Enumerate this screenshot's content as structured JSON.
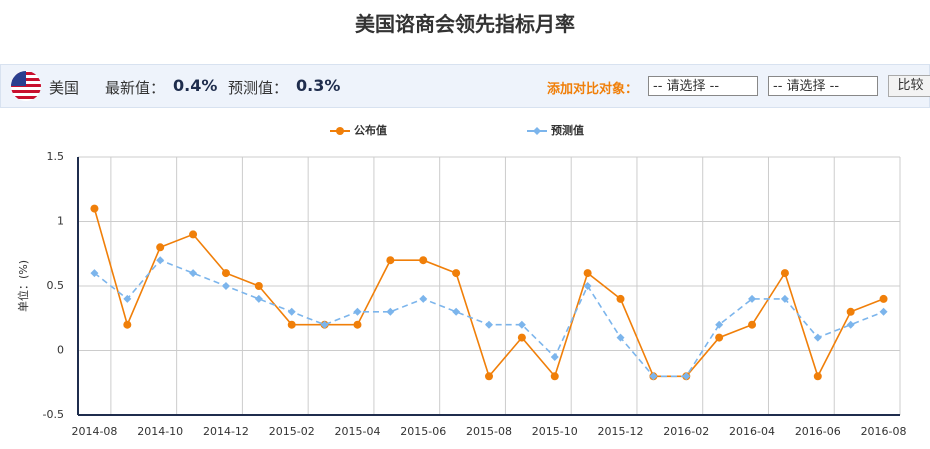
{
  "header": {
    "title": "美国谘商会领先指标月率",
    "country": "美国",
    "latest_label": "最新值：",
    "latest_value": "0.4%",
    "forecast_label": "预测值：",
    "forecast_value": "0.3%",
    "compare_label": "添加对比对象：",
    "select_1": "-- 请选择 --",
    "select_2": "-- 请选择 --",
    "button": "比较"
  },
  "chart_data": {
    "type": "line",
    "y_label": "单位：(%)",
    "categories": [
      "2014-08",
      null,
      "2014-10",
      null,
      "2014-12",
      null,
      "2015-02",
      null,
      "2015-04",
      null,
      "2015-06",
      null,
      "2015-08",
      null,
      "2015-10",
      null,
      "2015-12",
      null,
      "2016-02",
      null,
      "2016-04",
      null,
      "2016-06",
      null,
      "2016-08"
    ],
    "series": [
      {
        "name": "公布值",
        "color": "#f07f09",
        "dashed": false,
        "marker": "circle",
        "values": [
          1.1,
          0.2,
          0.8,
          0.9,
          0.6,
          0.5,
          0.2,
          0.2,
          0.2,
          0.7,
          0.7,
          0.6,
          -0.2,
          0.1,
          -0.2,
          0.6,
          0.4,
          -0.2,
          -0.2,
          0.1,
          0.2,
          0.6,
          -0.2,
          0.3,
          0.4
        ]
      },
      {
        "name": "预测值",
        "color": "#7cb5ec",
        "dashed": true,
        "marker": "diamond",
        "values": [
          0.6,
          0.4,
          0.7,
          0.6,
          0.5,
          0.4,
          0.3,
          0.2,
          0.3,
          0.3,
          0.4,
          0.3,
          0.2,
          0.2,
          -0.05,
          0.5,
          0.1,
          -0.2,
          -0.2,
          0.2,
          0.4,
          0.4,
          0.1,
          0.2,
          0.3
        ]
      }
    ],
    "ylim": [
      -0.5,
      1.5
    ],
    "yticks": [
      -0.5,
      0,
      0.5,
      1,
      1.5
    ],
    "grid": true
  }
}
